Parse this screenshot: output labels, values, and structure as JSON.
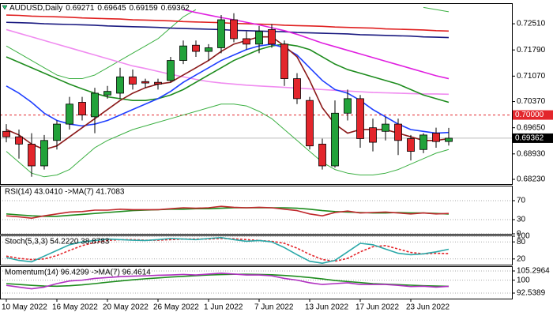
{
  "chart_data": [
    {
      "type": "candlestick",
      "symbol": "AUDUSD,Daily",
      "categories": [
        "10 May 2022",
        null,
        null,
        null,
        "16 May 2022",
        null,
        null,
        null,
        "20 May 2022",
        null,
        null,
        null,
        "26 May 2022",
        null,
        null,
        null,
        "1 Jun 2022",
        null,
        null,
        null,
        "7 Jun 2022",
        null,
        null,
        null,
        "13 Jun 2022",
        null,
        null,
        null,
        "17 Jun 2022",
        null,
        null,
        null,
        "23 Jun 2022",
        null,
        null,
        null
      ],
      "open": [
        0.6955,
        0.694,
        0.692,
        0.686,
        0.693,
        0.6975,
        0.7035,
        0.6995,
        0.7055,
        0.706,
        0.7105,
        0.7092,
        0.709,
        0.7095,
        0.715,
        0.7192,
        0.7175,
        0.7185,
        0.7262,
        0.721,
        0.7195,
        0.7235,
        0.7195,
        0.71,
        0.704,
        0.692,
        0.686,
        0.7005,
        0.7045,
        0.6965,
        0.6955,
        0.6975,
        0.6935,
        0.6905,
        0.695,
        0.69271
      ],
      "high": [
        0.6975,
        0.696,
        0.695,
        0.6945,
        0.6985,
        0.705,
        0.705,
        0.7075,
        0.708,
        0.713,
        0.7125,
        0.71,
        0.71,
        0.716,
        0.7205,
        0.7205,
        0.7195,
        0.7275,
        0.728,
        0.723,
        0.7245,
        0.725,
        0.7205,
        0.7115,
        0.705,
        0.6935,
        0.704,
        0.707,
        0.7055,
        0.699,
        0.6995,
        0.699,
        0.6945,
        0.695,
        0.6965,
        0.69645
      ],
      "low": [
        0.6925,
        0.688,
        0.683,
        0.685,
        0.6905,
        0.696,
        0.6985,
        0.695,
        0.7045,
        0.7045,
        0.707,
        0.7075,
        0.707,
        0.709,
        0.714,
        0.716,
        0.715,
        0.717,
        0.72,
        0.718,
        0.717,
        0.7185,
        0.708,
        0.703,
        0.6905,
        0.685,
        0.6855,
        0.6985,
        0.691,
        0.69,
        0.693,
        0.689,
        0.6875,
        0.6895,
        0.691,
        0.69159
      ],
      "close": [
        0.694,
        0.692,
        0.686,
        0.693,
        0.6975,
        0.703,
        0.7,
        0.706,
        0.7065,
        0.7105,
        0.7085,
        0.7088,
        0.7085,
        0.715,
        0.719,
        0.7175,
        0.7185,
        0.7262,
        0.721,
        0.7195,
        0.723,
        0.7195,
        0.71,
        0.7045,
        0.6915,
        0.686,
        0.7005,
        0.7045,
        0.6935,
        0.6925,
        0.6975,
        0.693,
        0.69,
        0.6945,
        0.6927,
        0.69362
      ],
      "up_color": "#22a23a",
      "down_color": "#e3262c",
      "series": [
        {
          "color": "#3cb043",
          "style": "thin",
          "values": [
            0.719,
            0.717,
            0.715,
            0.713,
            0.711,
            0.71,
            0.71,
            0.711,
            0.713,
            0.715,
            0.717,
            0.719,
            0.721,
            0.724,
            0.727,
            0.729,
            null,
            null,
            null,
            null,
            null,
            null,
            null,
            null,
            null,
            null,
            null,
            null,
            null,
            null,
            null,
            null,
            null,
            0.7296,
            0.729,
            0.7284
          ]
        },
        {
          "color": "#3cb043",
          "style": "thin",
          "values": [
            0.69,
            0.687,
            0.684,
            0.683,
            0.6835,
            0.685,
            0.688,
            0.691,
            0.693,
            0.6945,
            0.696,
            0.697,
            0.698,
            0.699,
            0.7,
            0.701,
            0.702,
            0.703,
            0.703,
            0.7025,
            0.701,
            0.699,
            0.696,
            0.693,
            0.69,
            0.687,
            0.685,
            0.684,
            0.6835,
            0.6835,
            0.684,
            0.685,
            0.6865,
            0.688,
            0.6895,
            0.6905
          ]
        },
        {
          "color": "#1a1a80",
          "values": [
            0.7255,
            0.7254,
            0.7253,
            0.7251,
            0.725,
            0.7249,
            0.7248,
            0.7247,
            0.7245,
            0.7244,
            0.7243,
            0.7242,
            0.7241,
            0.7239,
            0.7238,
            0.7237,
            0.7236,
            0.7235,
            0.7233,
            0.7232,
            0.7231,
            0.723,
            0.7229,
            0.7227,
            0.7226,
            0.7225,
            0.7224,
            0.7223,
            0.7221,
            0.722,
            0.7219,
            0.7218,
            0.7217,
            0.7215,
            0.7214,
            0.7213
          ]
        },
        {
          "color": "#e02020",
          "values": [
            0.7275,
            0.7274,
            0.7272,
            0.7271,
            0.727,
            0.7269,
            0.7267,
            0.7266,
            0.7265,
            0.7264,
            0.7262,
            0.7261,
            0.726,
            0.7259,
            0.7257,
            0.7256,
            0.7255,
            0.7254,
            0.7252,
            0.7251,
            0.725,
            0.7249,
            0.7247,
            0.7246,
            0.7245,
            0.7244,
            0.7242,
            0.7241,
            0.724,
            0.7239,
            0.7237,
            0.7236,
            0.7235,
            0.7234,
            0.7232,
            0.7231
          ]
        },
        {
          "color": "#f08cf0",
          "values": [
            0.7235,
            0.7225,
            0.7215,
            0.7205,
            0.7195,
            0.7185,
            0.7175,
            0.7165,
            0.7155,
            0.7145,
            0.7135,
            0.7128,
            0.712,
            0.7112,
            0.7105,
            0.7098,
            0.7092,
            0.7088,
            0.7085,
            0.7082,
            0.708,
            0.7078,
            0.7076,
            0.7074,
            0.7072,
            0.707,
            0.7068,
            0.7066,
            0.7064,
            0.7062,
            0.7061,
            0.706,
            0.7059,
            0.7058,
            0.7058,
            0.7057
          ]
        },
        {
          "color": "#e020e0",
          "values": [
            null,
            null,
            null,
            null,
            null,
            null,
            null,
            null,
            null,
            null,
            null,
            null,
            null,
            null,
            0.729,
            0.7282,
            0.7275,
            0.7268,
            0.7262,
            0.7255,
            0.7248,
            0.724,
            0.7232,
            0.7222,
            0.721,
            0.7198,
            0.7188,
            0.7178,
            0.7168,
            0.7158,
            0.7148,
            0.7138,
            0.7128,
            0.7118,
            0.7108,
            0.71
          ]
        },
        {
          "color": "#1e8c1e",
          "values": [
            0.716,
            0.7145,
            0.713,
            0.7115,
            0.71,
            0.7085,
            0.7072,
            0.706,
            0.705,
            0.7045,
            0.704,
            0.704,
            0.7045,
            0.7055,
            0.707,
            0.709,
            0.711,
            0.713,
            0.715,
            0.7165,
            0.718,
            0.719,
            0.7195,
            0.719,
            0.718,
            0.716,
            0.714,
            0.7125,
            0.7115,
            0.7105,
            0.7095,
            0.7085,
            0.707,
            0.7055,
            0.7045,
            0.7035
          ]
        },
        {
          "color": "#1f3fff",
          "values": [
            0.708,
            0.706,
            0.7035,
            0.7005,
            0.6985,
            0.6975,
            0.697,
            0.6975,
            0.6985,
            0.7,
            0.7015,
            0.703,
            0.7045,
            0.7065,
            0.709,
            0.711,
            0.713,
            0.715,
            0.7165,
            0.718,
            0.719,
            0.7195,
            0.7185,
            0.7165,
            0.713,
            0.7095,
            0.707,
            0.706,
            0.704,
            0.7015,
            0.6995,
            0.6975,
            0.696,
            0.6955,
            0.695,
            0.6952
          ]
        },
        {
          "color": "#8b1a1a",
          "values": [
            0.696,
            0.6945,
            0.692,
            0.6905,
            0.6915,
            0.694,
            0.6965,
            0.699,
            0.7015,
            0.704,
            0.706,
            0.7075,
            0.7085,
            0.709,
            0.711,
            0.713,
            0.715,
            0.7175,
            0.7195,
            0.7205,
            0.7215,
            0.7215,
            0.719,
            0.716,
            0.7095,
            0.702,
            0.6975,
            0.695,
            0.696,
            0.696,
            0.696,
            0.695,
            0.694,
            0.693,
            0.693,
            0.6935
          ]
        }
      ],
      "hline": {
        "value": 0.7,
        "label": "0.70000",
        "color": "#e3262c"
      },
      "price_line": true,
      "ylim": [
        0.681,
        0.7299
      ],
      "yticks": [
        {
          "value": 0.7251,
          "label": "0.72510"
        },
        {
          "value": 0.7179,
          "label": "0.71790"
        },
        {
          "value": 0.7107,
          "label": "0.71070"
        },
        {
          "value": 0.7037,
          "label": "0.70370"
        },
        {
          "value": 0.6965,
          "label": "0.69650"
        },
        {
          "value": 0.6893,
          "label": "0.68930"
        },
        {
          "value": 0.6823,
          "label": "0.68230"
        }
      ],
      "grid": false
    },
    {
      "type": "line",
      "legend": "RSI(14) 43.0410 ->MA(7) 41.7083",
      "series": [
        {
          "color": "#1e8c1e",
          "values": [
            42,
            40,
            38,
            37,
            37,
            39,
            41,
            43,
            45,
            47,
            49,
            50,
            51,
            52,
            52,
            53,
            53,
            54,
            55,
            55,
            55,
            55,
            55,
            54,
            52,
            49,
            47,
            46,
            45,
            44,
            44,
            45,
            44,
            44,
            43,
            41.7083
          ]
        },
        {
          "color": "#c0282c",
          "values": [
            38,
            36,
            33,
            38,
            42,
            46,
            47,
            50,
            50,
            52,
            51,
            51,
            51,
            53,
            55,
            54,
            55,
            58,
            56,
            55,
            56,
            55,
            52,
            49,
            42,
            38,
            45,
            48,
            44,
            45,
            46,
            44,
            42,
            44,
            42,
            43.041
          ]
        }
      ],
      "ylim": [
        0,
        100
      ],
      "yticks": [
        70,
        30,
        0
      ],
      "grid": true
    },
    {
      "type": "line",
      "legend": "Stoch(5,3,3) 54.2220 38.8783",
      "series": [
        {
          "color": "#e3262c",
          "style": "dashed",
          "values": [
            30,
            22,
            18,
            20,
            32,
            50,
            67,
            78,
            85,
            88,
            88,
            86,
            86,
            88,
            90,
            90,
            90,
            92,
            91,
            88,
            85,
            82,
            75,
            58,
            36,
            18,
            12,
            22,
            45,
            63,
            67,
            55,
            43,
            38,
            40,
            38.8783
          ]
        },
        {
          "color": "#2aa8a8",
          "values": [
            25,
            15,
            10,
            30,
            50,
            70,
            80,
            85,
            90,
            88,
            86,
            85,
            88,
            92,
            90,
            88,
            92,
            95,
            88,
            82,
            85,
            80,
            60,
            35,
            12,
            5,
            15,
            45,
            75,
            70,
            55,
            40,
            35,
            38,
            45,
            54.222
          ]
        }
      ],
      "ylim": [
        0,
        100
      ],
      "yticks": [
        100,
        80,
        20
      ],
      "grid": true
    },
    {
      "type": "line",
      "legend": "Momentum(14) 96.4299 ->MA(7) 96.4614",
      "series": [
        {
          "color": "#1e8c1e",
          "values": [
            98,
            97.5,
            97,
            96.6,
            96.5,
            96.8,
            97.3,
            98,
            98.8,
            99.5,
            100.2,
            100.8,
            101.3,
            101.8,
            102.2,
            102.6,
            103,
            103.2,
            103.4,
            103.4,
            103.3,
            103.1,
            102.7,
            102.2,
            101.5,
            100.7,
            99.8,
            99.2,
            98.6,
            98,
            97.7,
            97.4,
            97.1,
            96.8,
            96.6,
            96.4614
          ]
        },
        {
          "color": "#b030c0",
          "values": [
            97,
            96,
            95,
            96,
            98,
            99.5,
            100,
            101,
            101.5,
            102,
            102.3,
            102.5,
            102.8,
            103,
            103.3,
            103,
            103.5,
            104,
            103.5,
            103,
            103,
            102.5,
            101,
            100,
            98.5,
            97.5,
            98,
            98.5,
            97.5,
            97.5,
            97.5,
            97,
            96.3,
            96.5,
            96,
            96.4299
          ]
        }
      ],
      "ylim": [
        89.35,
        107.57
      ],
      "yticks": [
        105.2964,
        100,
        92.5389
      ],
      "grid": true
    }
  ]
}
